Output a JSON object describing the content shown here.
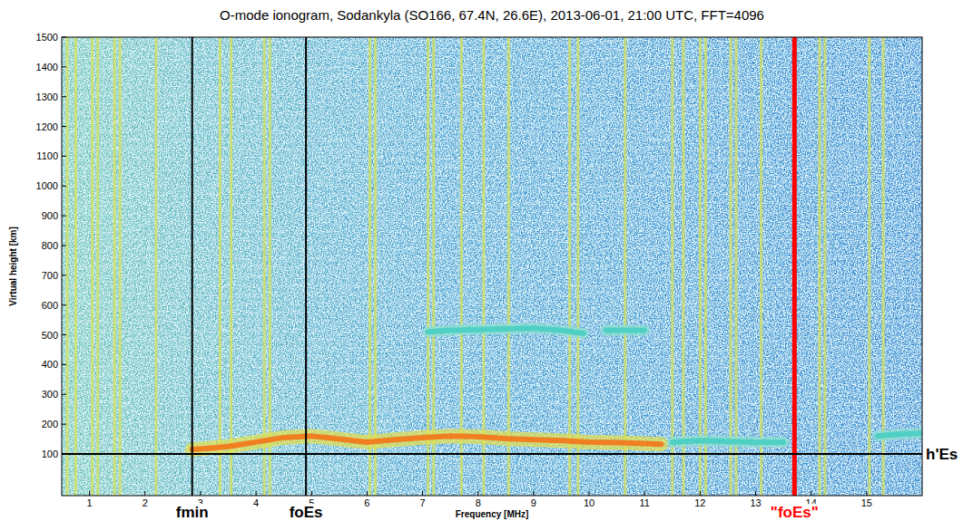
{
  "chart_data": {
    "type": "ionogram",
    "title": "O-mode ionogram, Sodankyla (SO166, 67.4N, 26.6E), 2013-06-01, 21:00 UTC, FFT=4096",
    "x_label": "Frequency [MHz]",
    "y_label": "Virtual height [km]",
    "xlim": [
      0.5,
      16
    ],
    "ylim": [
      -40,
      1500
    ],
    "xticks": [
      1,
      2,
      3,
      4,
      5,
      6,
      7,
      8,
      9,
      10,
      11,
      12,
      13,
      14,
      15
    ],
    "yticks": [
      100,
      200,
      300,
      400,
      500,
      600,
      700,
      800,
      900,
      1000,
      1100,
      1200,
      1300,
      1400,
      1500
    ],
    "grid": false,
    "interference": {
      "color": "#d6e25a",
      "x": [
        0.6,
        0.75,
        1.05,
        1.15,
        1.45,
        1.55,
        2.2,
        3.35,
        3.55,
        4.15,
        4.25,
        6.05,
        6.15,
        7.1,
        7.2,
        7.7,
        8.1,
        8.55,
        9.65,
        9.8,
        10.65,
        11.5,
        11.7,
        12.0,
        12.1,
        12.55,
        12.65,
        13.1,
        14.15,
        14.25,
        15.05,
        15.3
      ]
    },
    "traces": [
      {
        "color": "#f07f22",
        "x": [
          2.85,
          3.2,
          3.5,
          4.0,
          4.5,
          5.0,
          5.5,
          6.0,
          6.5,
          7.0,
          7.5,
          8.0,
          8.5,
          9.0,
          9.5,
          10.0,
          10.5,
          11.0,
          11.3
        ],
        "y": [
          115,
          120,
          125,
          140,
          155,
          160,
          150,
          140,
          148,
          155,
          160,
          158,
          152,
          148,
          145,
          140,
          138,
          135,
          133
        ]
      },
      {
        "color": "#4fd0c4",
        "x": [
          11.5,
          12.0,
          12.5,
          13.0,
          13.5
        ],
        "y": [
          140,
          145,
          142,
          140,
          140
        ]
      },
      {
        "color": "#4fd0c4",
        "x": [
          7.1,
          7.5,
          8.0,
          8.5,
          9.0,
          9.5,
          9.9,
          10.1,
          10.3,
          10.6,
          11.0
        ],
        "y": [
          510,
          515,
          518,
          520,
          522,
          515,
          505,
          null,
          515,
          515,
          515
        ]
      },
      {
        "color": "#4fd0c4",
        "x": [
          15.2,
          15.5,
          16.0
        ],
        "y": [
          160,
          165,
          170
        ]
      }
    ],
    "annotations": [
      {
        "label": "fmin",
        "x": 2.85,
        "color": "#000000"
      },
      {
        "label": "foEs",
        "x": 4.9,
        "color": "#000000"
      },
      {
        "label": "\"foEs\"",
        "x": 13.7,
        "color": "#ff0000"
      },
      {
        "label": "h'Es",
        "y": 100,
        "color": "#000000"
      }
    ]
  }
}
